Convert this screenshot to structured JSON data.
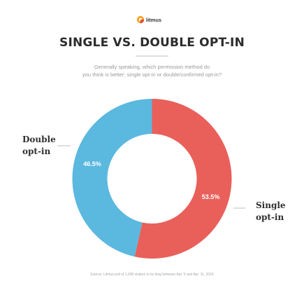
{
  "brand": {
    "name": "litmus",
    "logo_color": "#F5A623"
  },
  "header": {
    "title": "SINGLE VS. DOUBLE OPT-IN",
    "subtitle_line1": "Generally speaking, which permission method do",
    "subtitle_line2": "you think is better: single opt-in or double/confirmed opt-in?"
  },
  "footer": {
    "source": "Source: Litmus poll of 1,006 visitors to its blog between Apr. 6 and Apr. 11, 2016"
  },
  "chart_data": {
    "type": "pie",
    "donut": true,
    "start": "top-center",
    "direction": "clockwise",
    "slices": [
      {
        "label": "Single opt-in",
        "label_lines": [
          "Single",
          "opt-in"
        ],
        "value": 53.5,
        "value_text": "53.5%",
        "color": "#E9605A"
      },
      {
        "label": "Double opt-in",
        "label_lines": [
          "Double",
          "opt-in"
        ],
        "value": 46.5,
        "value_text": "46.5%",
        "color": "#5BB8DF"
      }
    ],
    "title": "SINGLE VS. DOUBLE OPT-IN",
    "legend": "none"
  }
}
